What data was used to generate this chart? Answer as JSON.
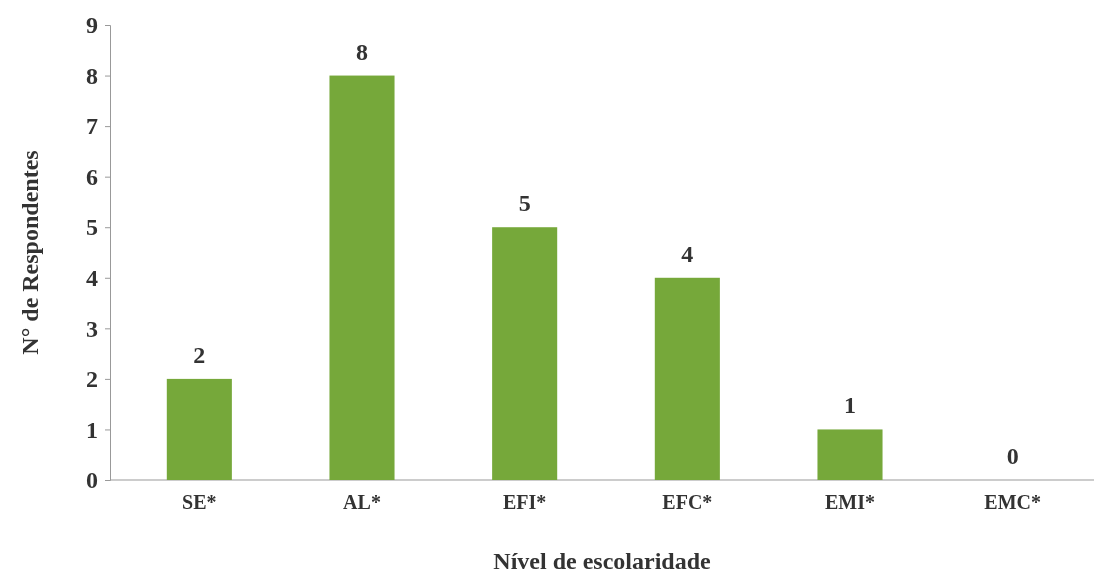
{
  "chart_data": {
    "type": "bar",
    "xlabel": "Nível de escolaridade",
    "ylabel": "N° de Respondentes",
    "categories": [
      "SE*",
      "AL*",
      "EFI*",
      "EFC*",
      "EMI*",
      "EMC*"
    ],
    "values": [
      2,
      8,
      5,
      4,
      1,
      0
    ],
    "color": "#76a83a",
    "ylim": [
      0,
      9
    ],
    "yticks": [
      0,
      1,
      2,
      3,
      4,
      5,
      6,
      7,
      8,
      9
    ],
    "grid": false,
    "data_labels": true
  }
}
